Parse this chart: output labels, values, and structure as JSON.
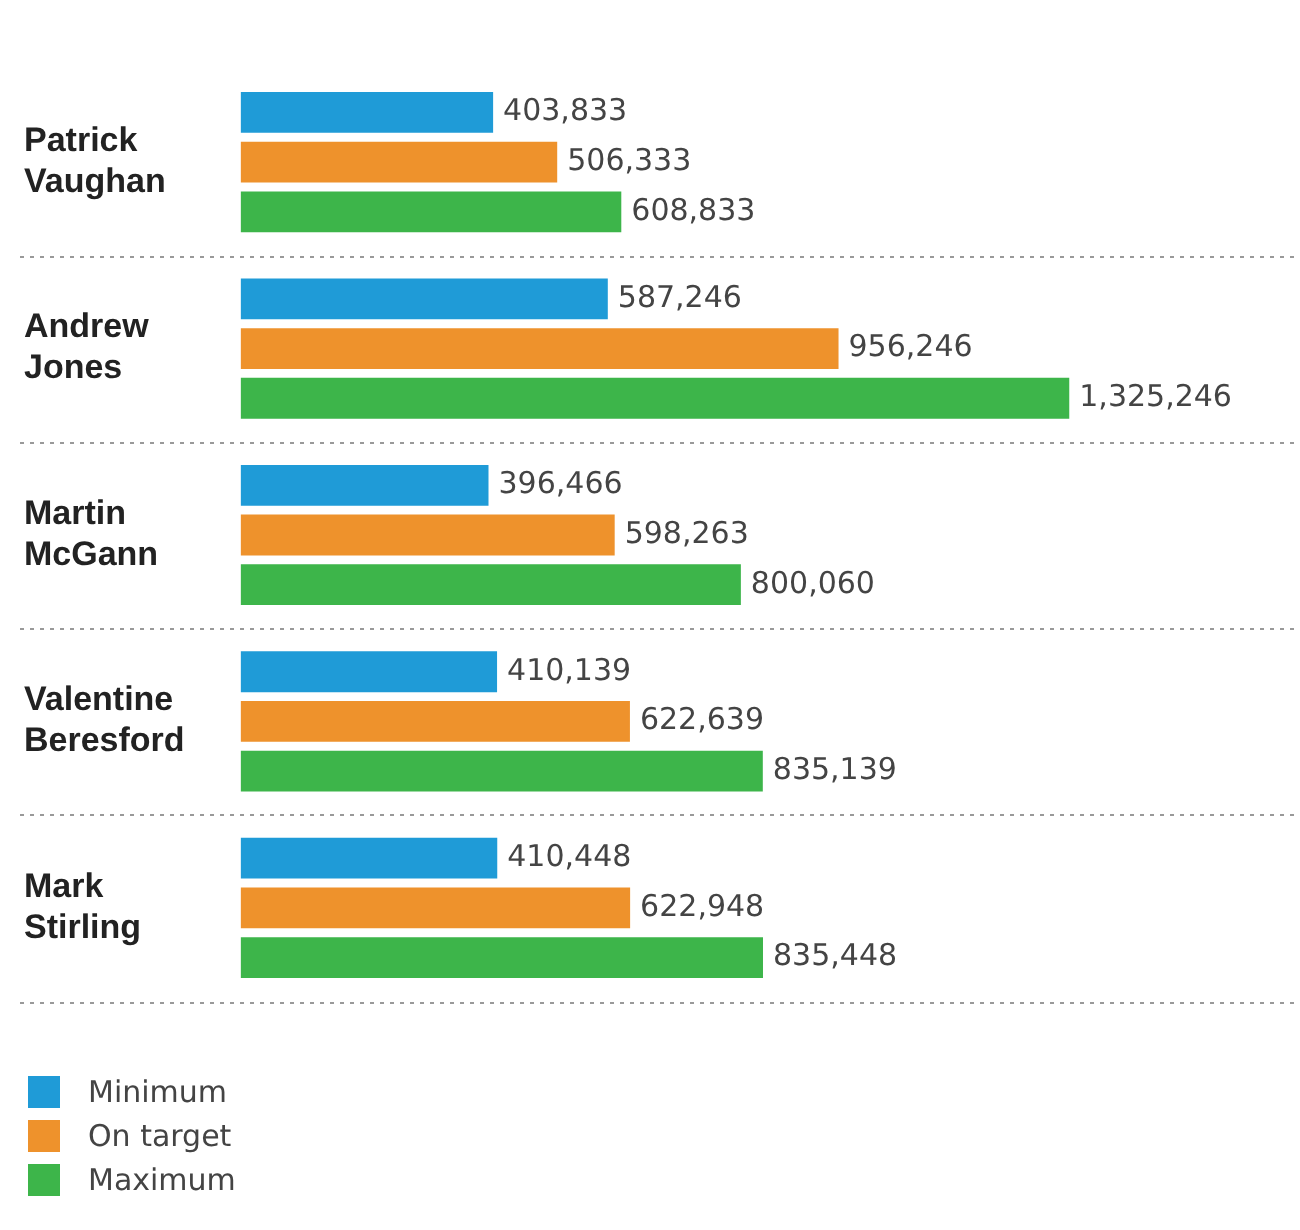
{
  "chart_data": {
    "type": "bar",
    "orientation": "horizontal",
    "categories": [
      "Patrick Vaughan",
      "Andrew Jones",
      "Martin McGann",
      "Valentine Beresford",
      "Mark Stirling"
    ],
    "series": [
      {
        "name": "Minimum",
        "color": "#1f9bd7",
        "values": [
          403833,
          587246,
          396466,
          410139,
          410448
        ],
        "value_labels": [
          "403,833",
          "587,246",
          "396,466",
          "410,139",
          "410,448"
        ]
      },
      {
        "name": "On target",
        "color": "#ee922c",
        "values": [
          506333,
          956246,
          598263,
          622639,
          622948
        ],
        "value_labels": [
          "506,333",
          "956,246",
          "598,263",
          "622,639",
          "622,948"
        ]
      },
      {
        "name": "Maximum",
        "color": "#3db54a",
        "values": [
          608833,
          1325246,
          800060,
          835139,
          835448
        ],
        "value_labels": [
          "608,833",
          "1,325,246",
          "800,060",
          "835,139",
          "835,448"
        ]
      }
    ],
    "grid": "y",
    "legend": "bottom left"
  }
}
